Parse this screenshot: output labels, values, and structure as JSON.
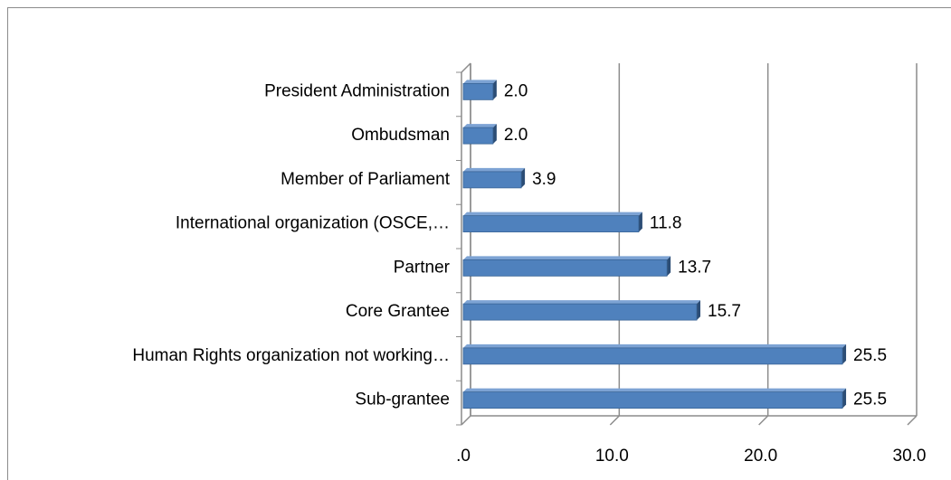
{
  "chart_data": {
    "type": "bar",
    "orientation": "horizontal",
    "categories": [
      "President Administration",
      "Ombudsman",
      "Member of Parliament",
      "International organization (OSCE,…",
      "Partner",
      "Core Grantee",
      "Human Rights organization not working…",
      "Sub-grantee"
    ],
    "values": [
      2.0,
      2.0,
      3.9,
      11.8,
      13.7,
      15.7,
      25.5,
      25.5
    ],
    "value_labels": [
      "2.0",
      "2.0",
      "3.9",
      "11.8",
      "13.7",
      "15.7",
      "25.5",
      "25.5"
    ],
    "color": "#4f81bd",
    "xlim": [
      0,
      30
    ],
    "xticks": [
      {
        "value": 0,
        "label": ".0"
      },
      {
        "value": 10,
        "label": "10.0"
      },
      {
        "value": 20,
        "label": "20.0"
      },
      {
        "value": 30,
        "label": "30.0"
      }
    ],
    "grid": true
  }
}
